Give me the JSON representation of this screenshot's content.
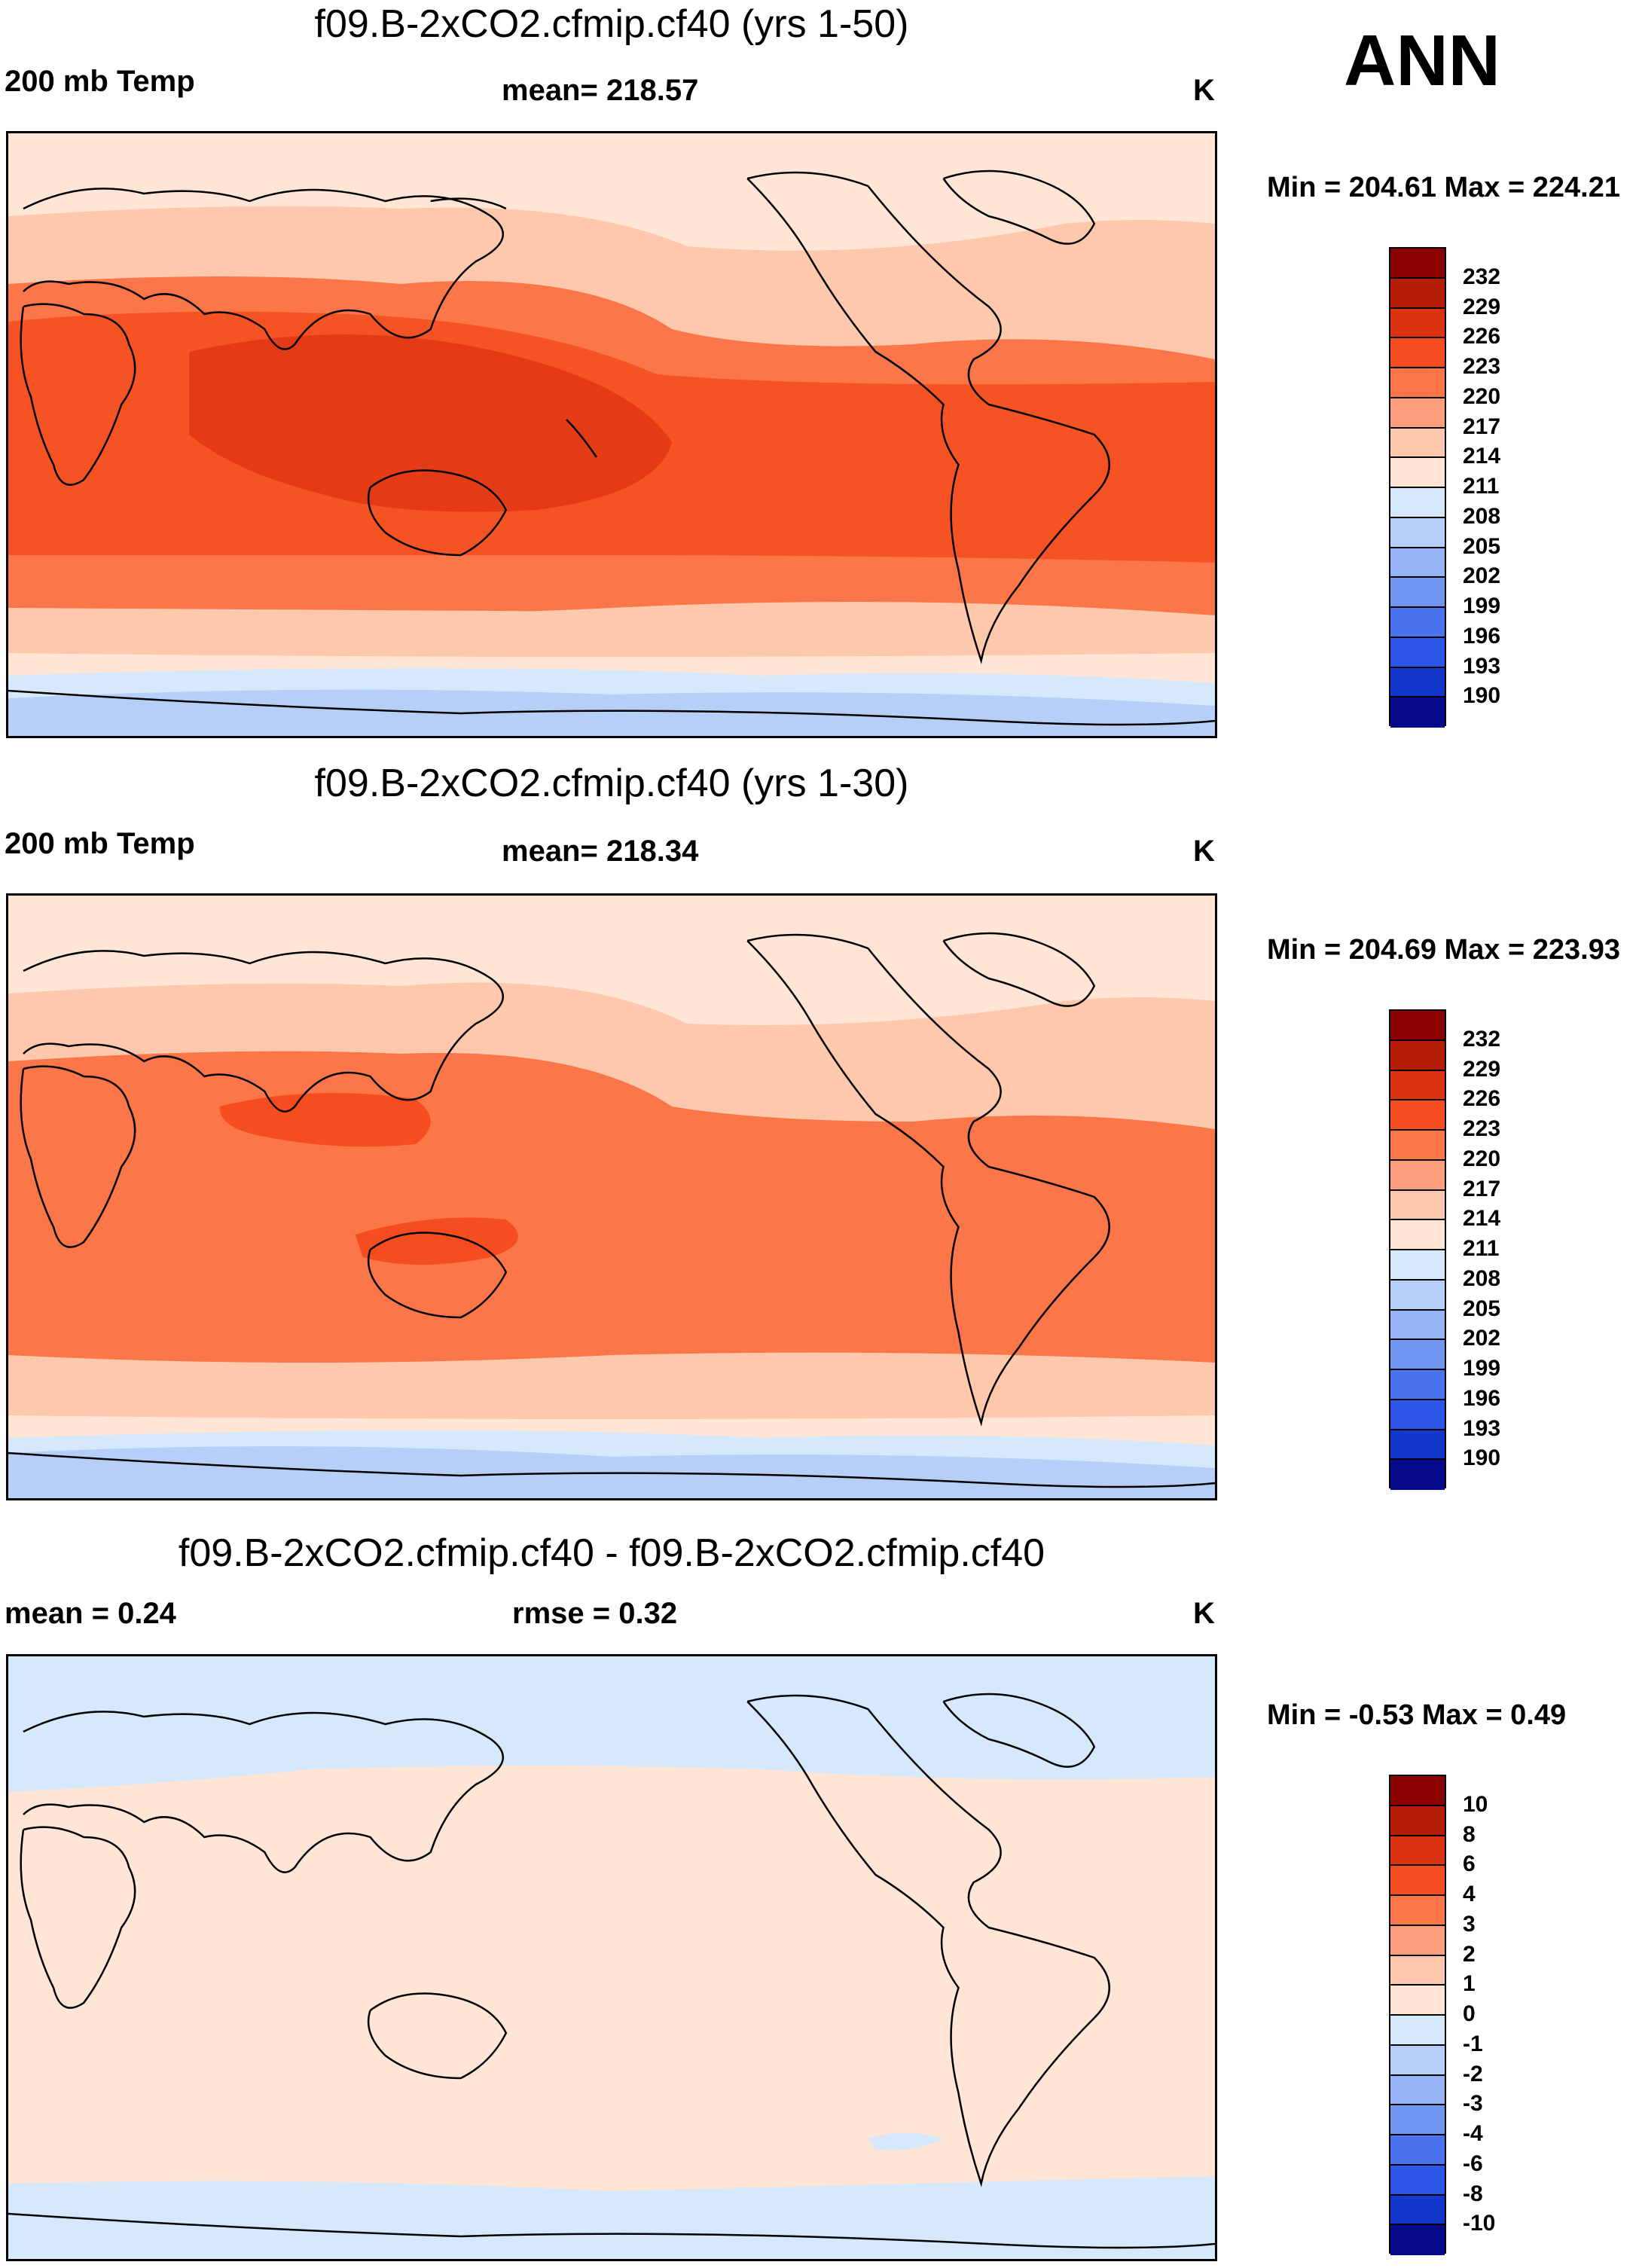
{
  "season": "ANN",
  "units_label": "K",
  "panels": [
    {
      "title": "f09.B-2xCO2.cfmip.cf40 (yrs 1-50)",
      "left_label": "200 mb Temp",
      "mid_label": "mean= 218.57",
      "right_label": "K",
      "minmax": "Min = 204.61 Max = 224.21",
      "colorbar_labels": [
        "232",
        "229",
        "226",
        "223",
        "220",
        "217",
        "214",
        "211",
        "208",
        "205",
        "202",
        "199",
        "196",
        "193",
        "190"
      ]
    },
    {
      "title": "f09.B-2xCO2.cfmip.cf40 (yrs 1-30)",
      "left_label": "200 mb Temp",
      "mid_label": "mean= 218.34",
      "right_label": "K",
      "minmax": "Min = 204.69 Max = 223.93",
      "colorbar_labels": [
        "232",
        "229",
        "226",
        "223",
        "220",
        "217",
        "214",
        "211",
        "208",
        "205",
        "202",
        "199",
        "196",
        "193",
        "190"
      ]
    },
    {
      "title": "f09.B-2xCO2.cfmip.cf40 - f09.B-2xCO2.cfmip.cf40",
      "left_label": "mean =   0.24",
      "mid_label": "rmse =   0.32",
      "right_label": "K",
      "minmax": "Min =  -0.53 Max =   0.49",
      "colorbar_labels": [
        "10",
        "8",
        "6",
        "4",
        "3",
        "2",
        "1",
        "0",
        "-1",
        "-2",
        "-3",
        "-4",
        "-6",
        "-8",
        "-10"
      ]
    }
  ],
  "colors": {
    "scale16": [
      "#8b0000",
      "#b51d06",
      "#db3310",
      "#f54d1f",
      "#fb7648",
      "#fc9e7b",
      "#fdc8ab",
      "#fee5d5",
      "#d6e8fb",
      "#b6cff8",
      "#95b4f6",
      "#6f96f0",
      "#4a73ee",
      "#2a55e6",
      "#1037c9",
      "#040a8a"
    ]
  },
  "chart_data": [
    {
      "type": "contour-map",
      "title": "f09.B-2xCO2.cfmip.cf40 (yrs 1-50)",
      "variable": "200 mb Temp",
      "units": "K",
      "mean": 218.57,
      "min": 204.61,
      "max": 224.21,
      "contour_levels": [
        190,
        193,
        196,
        199,
        202,
        205,
        208,
        211,
        214,
        217,
        220,
        223,
        226,
        229,
        232
      ]
    },
    {
      "type": "contour-map",
      "title": "f09.B-2xCO2.cfmip.cf40 (yrs 1-30)",
      "variable": "200 mb Temp",
      "units": "K",
      "mean": 218.34,
      "min": 204.69,
      "max": 223.93,
      "contour_levels": [
        190,
        193,
        196,
        199,
        202,
        205,
        208,
        211,
        214,
        217,
        220,
        223,
        226,
        229,
        232
      ]
    },
    {
      "type": "contour-map",
      "title": "f09.B-2xCO2.cfmip.cf40 - f09.B-2xCO2.cfmip.cf40",
      "units": "K",
      "mean": 0.24,
      "rmse": 0.32,
      "min": -0.53,
      "max": 0.49,
      "contour_levels": [
        -10,
        -8,
        -6,
        -4,
        -3,
        -2,
        -1,
        0,
        1,
        2,
        3,
        4,
        6,
        8,
        10
      ]
    }
  ]
}
